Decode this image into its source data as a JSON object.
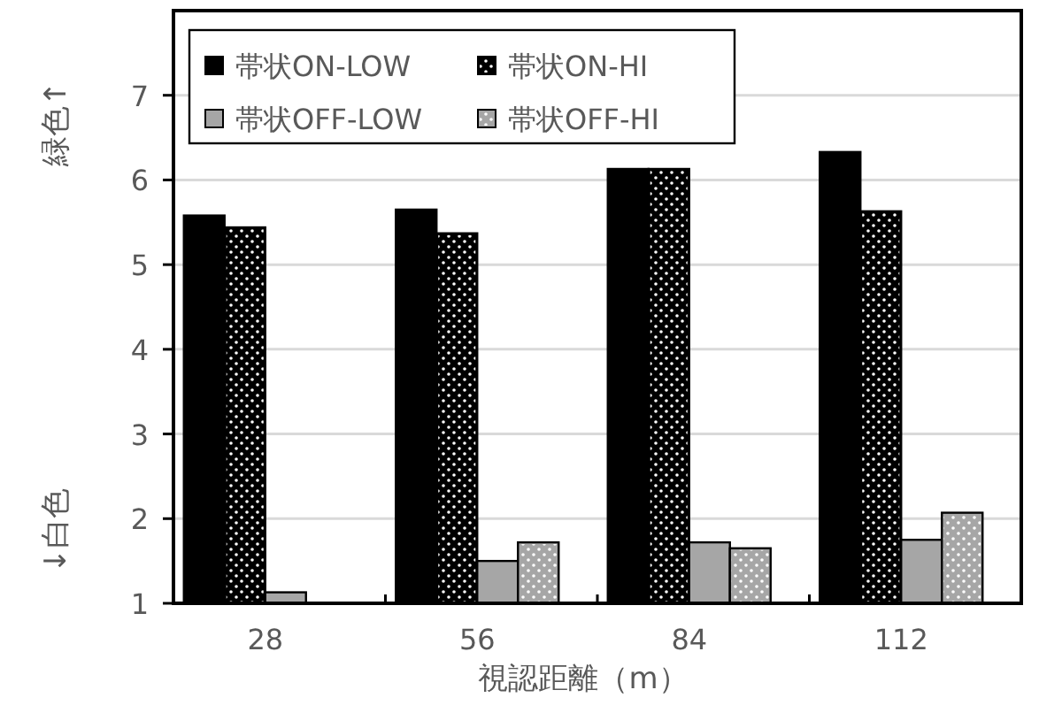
{
  "chart_data": {
    "type": "bar",
    "xlabel": "視認距離（m）",
    "annotations": [
      "緑色↑",
      "↓白色"
    ],
    "categories": [
      "28",
      "56",
      "84",
      "112"
    ],
    "series": [
      {
        "name": "帯状ON-LOW",
        "color": "#000000",
        "values": [
          5.58,
          5.65,
          6.13,
          6.33
        ]
      },
      {
        "name": "帯状ON-HI",
        "color": "#000000",
        "values": [
          5.44,
          5.37,
          6.13,
          5.63
        ]
      },
      {
        "name": "帯状OFF-LOW",
        "color": "#a6a6a6",
        "values": [
          1.13,
          1.5,
          1.72,
          1.75
        ]
      },
      {
        "name": "帯状OFF-HI",
        "color": "#a6a6a6",
        "values": [
          null,
          1.72,
          1.65,
          2.07
        ]
      }
    ],
    "ylim": [
      1,
      8
    ],
    "yticks": [
      1,
      2,
      3,
      4,
      5,
      6,
      7
    ],
    "grid": "y",
    "legend": "top left"
  }
}
